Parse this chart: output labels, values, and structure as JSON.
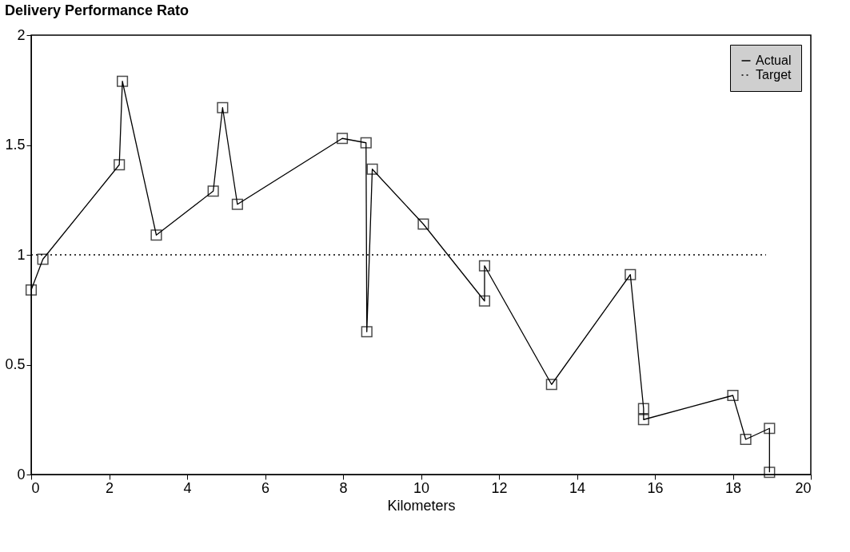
{
  "chart_data": {
    "type": "line",
    "title": "Delivery Performance Rato",
    "xlabel": "Kilometers",
    "xlim": [
      0,
      20
    ],
    "xticks": [
      0,
      2,
      4,
      6,
      8,
      10,
      12,
      14,
      16,
      18,
      20
    ],
    "ylim": [
      0,
      2
    ],
    "yticks": [
      0,
      0.5,
      1,
      1.5,
      2
    ],
    "grid": false,
    "legend": "top right",
    "series": [
      {
        "name": "Actual",
        "color": "#000000",
        "marker": "square",
        "line_style": "solid",
        "x": [
          0,
          0.3,
          2.26,
          2.34,
          3.21,
          4.67,
          4.91,
          5.29,
          7.98,
          8.59,
          8.61,
          8.75,
          10.06,
          11.63,
          11.63,
          13.35,
          15.37,
          15.71,
          15.71,
          18.0,
          18.33,
          18.94,
          18.94
        ],
        "values": [
          0.84,
          0.98,
          1.41,
          1.79,
          1.09,
          1.29,
          1.67,
          1.23,
          1.53,
          1.51,
          0.65,
          1.39,
          1.14,
          0.79,
          0.95,
          0.41,
          0.91,
          0.3,
          0.25,
          0.36,
          0.16,
          0.21,
          0.01
        ]
      },
      {
        "name": "Target",
        "color": "#000000",
        "marker": "none",
        "line_style": "dotted",
        "x": [
          0,
          18.85
        ],
        "values": [
          1,
          1
        ]
      }
    ]
  }
}
